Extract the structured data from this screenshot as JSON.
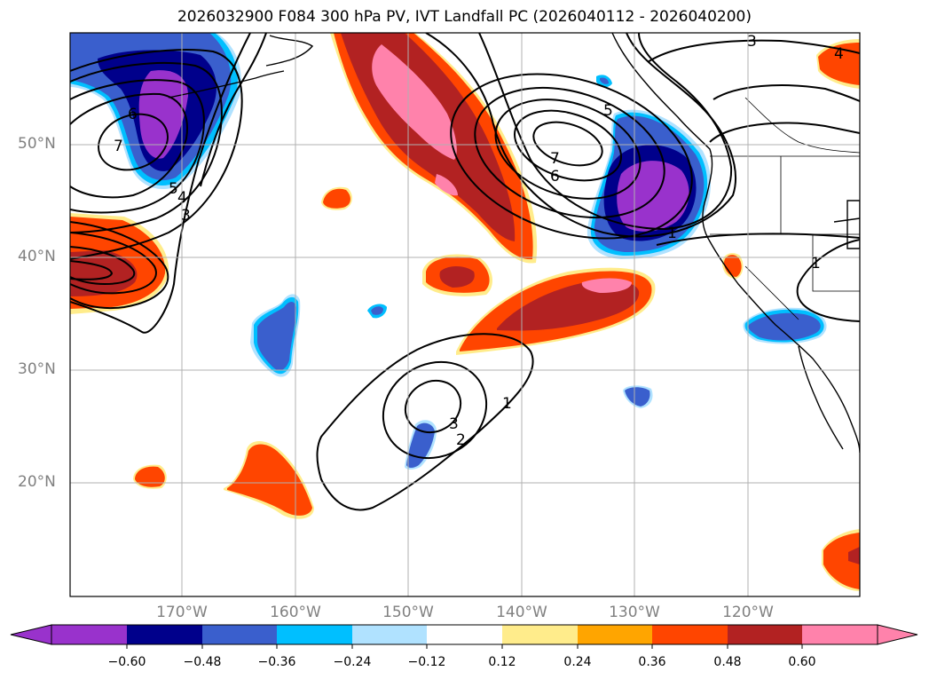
{
  "title": "2026032900 F084 300 hPa PV, IVT Landfall PC (2026040112 - 2026040200)",
  "lat_labels": [
    "50°N",
    "40°N",
    "30°N",
    "20°N"
  ],
  "lon_labels": [
    "170°W",
    "160°W",
    "150°W",
    "140°W",
    "130°W",
    "120°W"
  ],
  "colorbar": {
    "ticks": [
      "−0.60",
      "−0.48",
      "−0.36",
      "−0.24",
      "−0.12",
      "0.12",
      "0.24",
      "0.36",
      "0.48",
      "0.60"
    ],
    "colors": [
      "#9932cc",
      "#00008b",
      "#3a5fcd",
      "#00bfff",
      "#b0e2ff",
      "#ffffff",
      "#ffec8b",
      "#ffa500",
      "#ff4500",
      "#b22222",
      "#ff82ab"
    ]
  },
  "contour_labels": {
    "north_high": [
      "7",
      "6",
      "5"
    ],
    "west_high": [
      "7",
      "6",
      "5",
      "4",
      "3"
    ],
    "south": [
      "3",
      "2",
      "1"
    ],
    "northeast": [
      "3",
      "4"
    ],
    "coast": [
      "1",
      "1"
    ]
  },
  "colors": {
    "purple": "#9932cc",
    "navy": "#00008b",
    "blue": "#3a5fcd",
    "cyan": "#00bfff",
    "lightblue": "#b0e2ff",
    "yellow": "#ffec8b",
    "orange": "#ffa500",
    "redorange": "#ff4500",
    "firebrick": "#b22222",
    "pink": "#ff82ab"
  }
}
